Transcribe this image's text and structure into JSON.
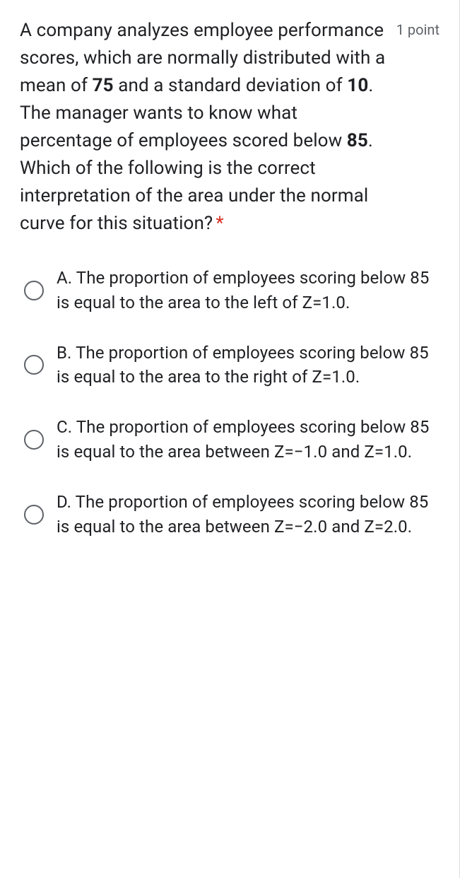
{
  "question": {
    "text_parts": {
      "part1": "A company analyzes employee performance scores, which are normally distributed with a mean of ",
      "bold1": "75",
      "part2": " and a standard deviation of ",
      "bold2": "10",
      "part3": ". The manager wants to know what percentage of employees scored below ",
      "bold3": "85",
      "part4": ". Which of the following is the correct interpretation of the area under the normal curve for this situation?"
    },
    "required_marker": "*",
    "points_label": "1 point"
  },
  "options": [
    {
      "id": "option-a",
      "text": "A. The proportion of employees scoring below 85 is equal to the area to the left of Z=1.0."
    },
    {
      "id": "option-b",
      "text": "B. The proportion of employees scoring below 85 is equal to the area to the right of Z=1.0."
    },
    {
      "id": "option-c",
      "text": "C. The proportion of employees scoring below 85 is equal to the area between Z=−1.0 and Z=1.0."
    },
    {
      "id": "option-d",
      "text": "D. The proportion of employees scoring below 85 is equal to the area between Z=−2.0 and Z=2.0."
    }
  ]
}
